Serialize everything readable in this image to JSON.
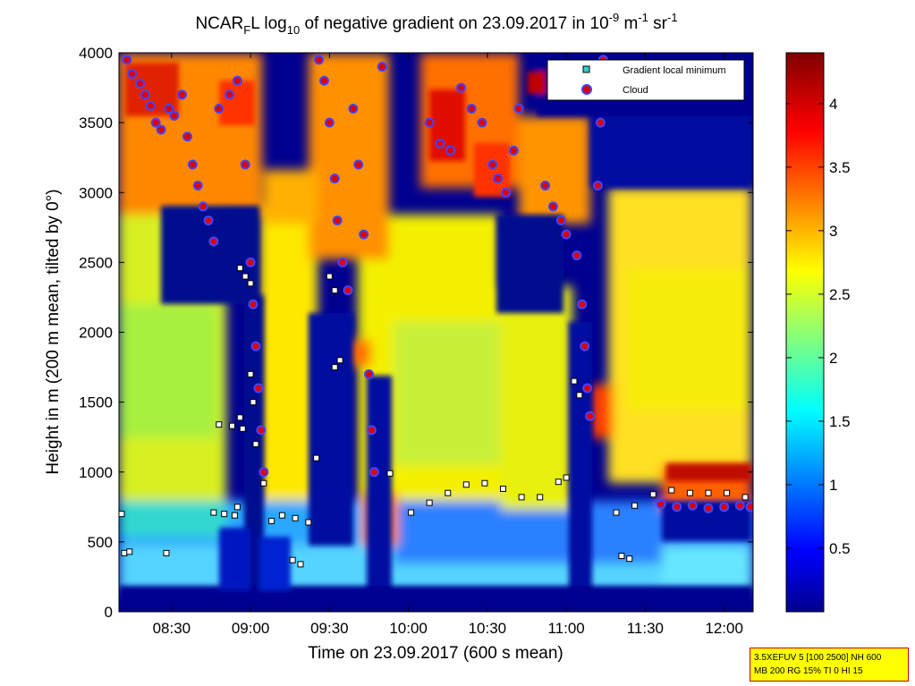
{
  "chart_data": {
    "type": "heatmap",
    "title": {
      "part1": "NCAR",
      "sub1": "F",
      "part2": "L log",
      "sub2": "10",
      "part3": " of negative gradient on 23.09.2017 in 10",
      "sup1": "-9",
      "part4": " m",
      "sup2": "-1",
      "part5": " sr",
      "sup3": "-1"
    },
    "xlabel": "Time on 23.09.2017 (600 s mean)",
    "ylabel": "Height in m (200 m mean, tilted by 0°)",
    "xlim": [
      "08:10",
      "12:11"
    ],
    "ylim": [
      0,
      4000
    ],
    "x_ticks": [
      "08:30",
      "09:00",
      "09:30",
      "10:00",
      "10:30",
      "11:00",
      "11:30",
      "12:00"
    ],
    "y_ticks": [
      "0",
      "500",
      "1000",
      "1500",
      "2000",
      "2500",
      "3000",
      "3500",
      "4000"
    ],
    "colorbar": {
      "range": [
        0,
        4.4
      ],
      "ticks": [
        "0.5",
        "1",
        "1.5",
        "2",
        "2.5",
        "3",
        "3.5",
        "4"
      ],
      "colormap": "jet"
    },
    "legend": {
      "position": "top-right",
      "entries": [
        {
          "label": "Gradient local minimum",
          "marker": "square",
          "color": "#33cccc"
        },
        {
          "label": "Cloud",
          "marker": "circle",
          "color": "#dd0000"
        }
      ]
    },
    "gradient_minima": [
      [
        "08:11",
        700
      ],
      [
        "08:12",
        420
      ],
      [
        "08:14",
        430
      ],
      [
        "08:28",
        420
      ],
      [
        "08:46",
        710
      ],
      [
        "08:50",
        700
      ],
      [
        "08:54",
        690
      ],
      [
        "08:55",
        750
      ],
      [
        "08:48",
        1340
      ],
      [
        "08:53",
        1330
      ],
      [
        "08:56",
        1390
      ],
      [
        "08:57",
        1310
      ],
      [
        "08:56",
        2460
      ],
      [
        "08:58",
        2400
      ],
      [
        "09:00",
        2350
      ],
      [
        "09:00",
        1700
      ],
      [
        "09:01",
        1500
      ],
      [
        "09:02",
        1200
      ],
      [
        "09:05",
        920
      ],
      [
        "09:08",
        650
      ],
      [
        "09:12",
        690
      ],
      [
        "09:17",
        670
      ],
      [
        "09:22",
        640
      ],
      [
        "09:16",
        370
      ],
      [
        "09:19",
        340
      ],
      [
        "09:25",
        1100
      ],
      [
        "09:32",
        1750
      ],
      [
        "09:34",
        1800
      ],
      [
        "09:30",
        2400
      ],
      [
        "09:32",
        2300
      ],
      [
        "09:47",
        1000
      ],
      [
        "09:53",
        990
      ],
      [
        "10:01",
        710
      ],
      [
        "10:08",
        780
      ],
      [
        "10:15",
        850
      ],
      [
        "10:22",
        910
      ],
      [
        "10:29",
        920
      ],
      [
        "10:36",
        880
      ],
      [
        "10:43",
        820
      ],
      [
        "10:50",
        820
      ],
      [
        "10:57",
        930
      ],
      [
        "11:00",
        960
      ],
      [
        "11:03",
        1650
      ],
      [
        "11:05",
        1550
      ],
      [
        "11:19",
        710
      ],
      [
        "11:26",
        760
      ],
      [
        "11:33",
        840
      ],
      [
        "11:40",
        870
      ],
      [
        "11:47",
        850
      ],
      [
        "11:54",
        850
      ],
      [
        "12:01",
        850
      ],
      [
        "12:08",
        820
      ],
      [
        "11:21",
        400
      ],
      [
        "11:24",
        380
      ]
    ],
    "cloud_markers": [
      [
        "08:13",
        3950
      ],
      [
        "08:15",
        3850
      ],
      [
        "08:18",
        3780
      ],
      [
        "08:20",
        3700
      ],
      [
        "08:22",
        3620
      ],
      [
        "08:24",
        3500
      ],
      [
        "08:26",
        3450
      ],
      [
        "08:29",
        3600
      ],
      [
        "08:31",
        3550
      ],
      [
        "08:34",
        3700
      ],
      [
        "08:36",
        3400
      ],
      [
        "08:38",
        3200
      ],
      [
        "08:40",
        3050
      ],
      [
        "08:42",
        2900
      ],
      [
        "08:44",
        2800
      ],
      [
        "08:46",
        2650
      ],
      [
        "08:48",
        3600
      ],
      [
        "08:52",
        3700
      ],
      [
        "08:55",
        3800
      ],
      [
        "08:58",
        3200
      ],
      [
        "09:00",
        2500
      ],
      [
        "09:01",
        2200
      ],
      [
        "09:02",
        1900
      ],
      [
        "09:03",
        1600
      ],
      [
        "09:04",
        1300
      ],
      [
        "09:05",
        1000
      ],
      [
        "09:26",
        3950
      ],
      [
        "09:28",
        3800
      ],
      [
        "09:30",
        3500
      ],
      [
        "09:32",
        3100
      ],
      [
        "09:33",
        2800
      ],
      [
        "09:35",
        2500
      ],
      [
        "09:37",
        2300
      ],
      [
        "09:39",
        3600
      ],
      [
        "09:41",
        3200
      ],
      [
        "09:43",
        2700
      ],
      [
        "09:45",
        1700
      ],
      [
        "09:46",
        1300
      ],
      [
        "09:47",
        1000
      ],
      [
        "09:50",
        3900
      ],
      [
        "10:08",
        3500
      ],
      [
        "10:12",
        3350
      ],
      [
        "10:16",
        3300
      ],
      [
        "10:20",
        3750
      ],
      [
        "10:24",
        3600
      ],
      [
        "10:28",
        3500
      ],
      [
        "10:32",
        3200
      ],
      [
        "10:34",
        3100
      ],
      [
        "10:37",
        3000
      ],
      [
        "10:40",
        3300
      ],
      [
        "10:42",
        3600
      ],
      [
        "10:52",
        3050
      ],
      [
        "10:55",
        2900
      ],
      [
        "10:58",
        2800
      ],
      [
        "11:00",
        2700
      ],
      [
        "11:04",
        2550
      ],
      [
        "11:06",
        2200
      ],
      [
        "11:07",
        1900
      ],
      [
        "11:08",
        1600
      ],
      [
        "11:09",
        1400
      ],
      [
        "11:12",
        3050
      ],
      [
        "11:13",
        3500
      ],
      [
        "11:14",
        3950
      ],
      [
        "11:36",
        770
      ],
      [
        "11:42",
        750
      ],
      [
        "11:48",
        760
      ],
      [
        "11:54",
        740
      ],
      [
        "12:00",
        750
      ],
      [
        "12:06",
        760
      ],
      [
        "12:10",
        750
      ]
    ]
  },
  "info_box": {
    "line1": "3.5XEFUV 5 [100 2500] NH 600",
    "line2": "MB 200 RG 15% TI 0 HI 15"
  }
}
